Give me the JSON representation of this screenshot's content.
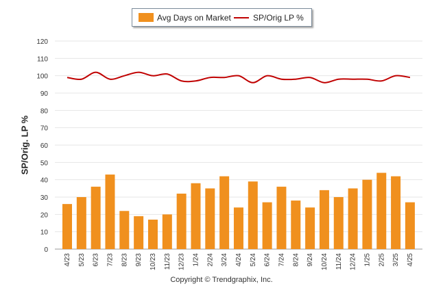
{
  "chart_data": {
    "type": "bar",
    "categories": [
      "4/23",
      "5/23",
      "6/23",
      "7/23",
      "8/23",
      "9/23",
      "10/23",
      "11/23",
      "12/23",
      "1/24",
      "2/24",
      "3/24",
      "4/24",
      "5/24",
      "6/24",
      "7/24",
      "8/24",
      "9/24",
      "10/24",
      "11/24",
      "12/24",
      "1/25",
      "2/25",
      "3/25",
      "4/25"
    ],
    "series": [
      {
        "name": "Avg Days on Market",
        "type": "bar",
        "values": [
          26,
          30,
          36,
          43,
          22,
          19,
          17,
          20,
          32,
          38,
          35,
          42,
          24,
          39,
          27,
          36,
          28,
          24,
          34,
          30,
          35,
          40,
          44,
          42,
          27
        ]
      },
      {
        "name": "SP/Orig LP %",
        "type": "line",
        "values": [
          99,
          98,
          102,
          98,
          100,
          102,
          100,
          101,
          97,
          97,
          99,
          99,
          100,
          96,
          100,
          98,
          98,
          99,
          96,
          98,
          98,
          98,
          97,
          100,
          99
        ]
      }
    ],
    "ylabel": "SP/Orig. LP %",
    "ylim": [
      0,
      120
    ],
    "yticks": [
      0,
      10,
      20,
      30,
      40,
      50,
      60,
      70,
      80,
      90,
      100,
      110,
      120
    ],
    "grid": true,
    "legend_position": "top-center",
    "colors": {
      "bar": "#f0901e",
      "line": "#c00000",
      "grid": "#e6e6e6"
    }
  },
  "footer": {
    "copyright": "Copyright © Trendgraphix, Inc."
  }
}
